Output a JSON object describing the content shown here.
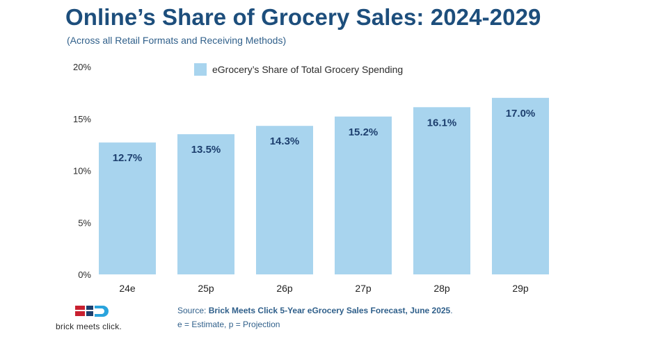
{
  "header": {
    "title": "Online’s Share of Grocery Sales: 2024-2029",
    "subtitle": "(Across all Retail Formats and Receiving Methods)"
  },
  "footer": {
    "source_prefix": "Source: ",
    "source_text": "Brick Meets Click 5-Year eGrocery Sales Forecast, June 2025",
    "source_suffix": ".",
    "note": "e = Estimate, p = Projection"
  },
  "logo": {
    "text": "brick meets click.",
    "colors": {
      "red": "#c8202f",
      "navy": "#1d3f6e",
      "blue": "#2aa4dd"
    }
  },
  "chart_data": {
    "type": "bar",
    "title": "Online’s Share of Grocery Sales: 2024-2029",
    "subtitle": "(Across all Retail Formats and Receiving Methods)",
    "categories": [
      "24e",
      "25p",
      "26p",
      "27p",
      "28p",
      "29p"
    ],
    "series": [
      {
        "name": "eGrocery’s Share of Total Grocery Spending",
        "values": [
          12.7,
          13.5,
          14.3,
          15.2,
          16.1,
          17.0
        ],
        "labels": [
          "12.7%",
          "13.5%",
          "14.3%",
          "15.2%",
          "16.1%",
          "17.0%"
        ],
        "color": "#a8d4ee"
      }
    ],
    "y_ticks": [
      0,
      5,
      10,
      15,
      20
    ],
    "y_tick_labels": [
      "0%",
      "5%",
      "10%",
      "15%",
      "20%"
    ],
    "ylim": [
      0,
      20
    ],
    "xlabel": "",
    "ylabel": "",
    "grid": false,
    "legend_position": "top-center",
    "label_color": "#1d3f6e"
  }
}
